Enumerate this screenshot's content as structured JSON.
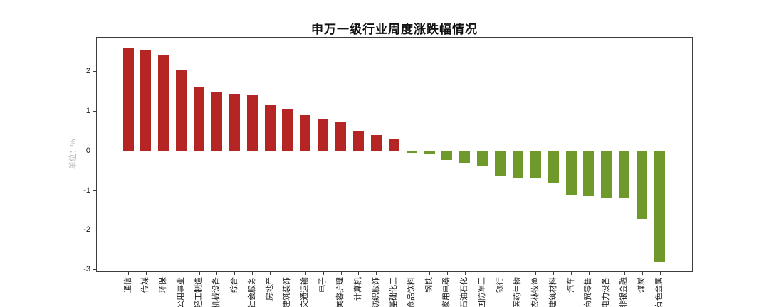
{
  "title": "申万一级行业周度涨跌幅情况",
  "y_axis": {
    "unit_label": "单位：%"
  },
  "chart_data": {
    "type": "bar",
    "title": "申万一级行业周度涨跌幅情况",
    "xlabel": "",
    "ylabel": "单位：%",
    "grid": false,
    "legend_position": "none",
    "ylim": [
      -3.07,
      2.87
    ],
    "yticks": [
      2,
      1,
      0,
      -1,
      -2,
      -3
    ],
    "positive_color": "#b52524",
    "negative_color": "#6f992b",
    "categories": [
      "通信",
      "传媒",
      "环保",
      "公用事业",
      "轻工制造",
      "机械设备",
      "综合",
      "社会服务",
      "房地产",
      "建筑装饰",
      "交通运输",
      "电子",
      "美容护理",
      "计算机",
      "纺织服饰",
      "基础化工",
      "食品饮料",
      "钢铁",
      "家用电器",
      "石油石化",
      "国防军工",
      "银行",
      "医药生物",
      "农林牧渔",
      "建筑材料",
      "汽车",
      "商贸零售",
      "电力设备",
      "非银金融",
      "煤炭",
      "有色金属"
    ],
    "values": [
      2.6,
      2.54,
      2.42,
      2.04,
      1.6,
      1.49,
      1.43,
      1.4,
      1.15,
      1.06,
      0.9,
      0.81,
      0.72,
      0.48,
      0.4,
      0.3,
      -0.06,
      -0.1,
      -0.24,
      -0.32,
      -0.4,
      -0.64,
      -0.68,
      -0.68,
      -0.8,
      -1.13,
      -1.15,
      -1.19,
      -1.21,
      -1.72,
      -2.81
    ]
  }
}
